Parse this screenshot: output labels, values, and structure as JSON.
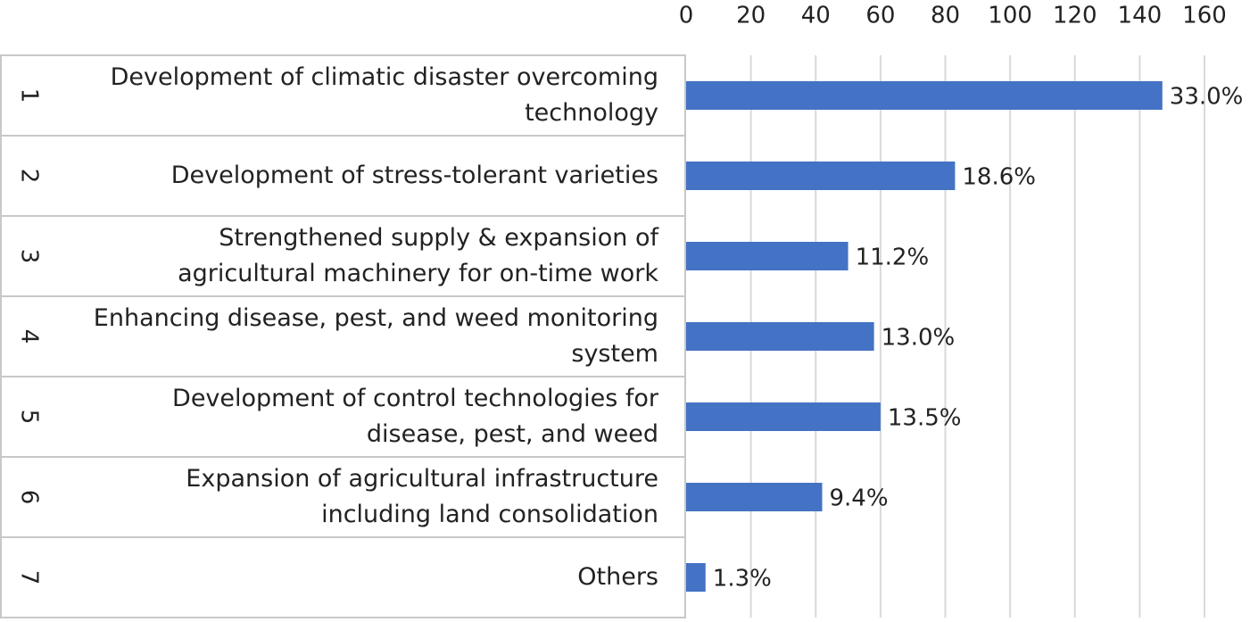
{
  "chart_data": {
    "type": "bar",
    "orientation": "horizontal",
    "row_numbers": [
      "1",
      "2",
      "3",
      "4",
      "5",
      "6",
      "7"
    ],
    "categories": [
      "Development of climatic disaster overcoming\ntechnology",
      "Development of stress-tolerant varieties",
      "Strengthened supply & expansion of\nagricultural machinery for on-time work",
      "Enhancing disease, pest, and weed monitoring\nsystem",
      "Development of control technologies for\ndisease, pest, and weed",
      "Expansion of agricultural infrastructure\nincluding land consolidation",
      "Others"
    ],
    "values": [
      147,
      83,
      50,
      58,
      60,
      42,
      6
    ],
    "share_labels": [
      "33.0%",
      "18.6%",
      "11.2%",
      "13.0%",
      "13.5%",
      "9.4%",
      "1.3%"
    ],
    "color": "#4472c4",
    "xlim": [
      0,
      160
    ],
    "xticks": [
      0,
      20,
      40,
      60,
      80,
      100,
      120,
      140,
      160
    ],
    "grid": true
  }
}
